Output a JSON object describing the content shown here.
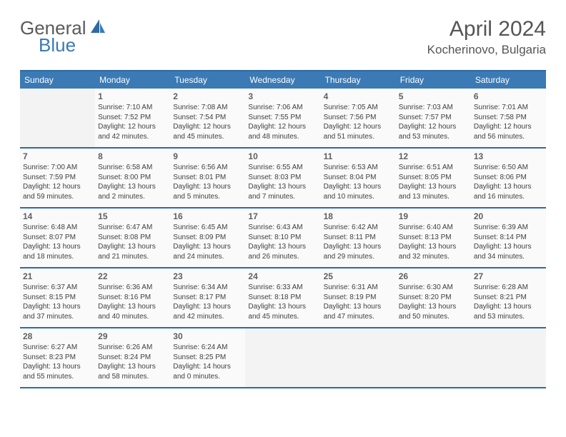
{
  "logo": {
    "text1": "General",
    "text2": "Blue"
  },
  "title": "April 2024",
  "location": "Kocherinovo, Bulgaria",
  "day_names": [
    "Sunday",
    "Monday",
    "Tuesday",
    "Wednesday",
    "Thursday",
    "Friday",
    "Saturday"
  ],
  "colors": {
    "header_bg": "#3b7ab5",
    "border": "#2f6aa3",
    "empty_bg": "#f3f3f3",
    "filled_bg": "#fafafa",
    "text": "#333333",
    "logo_blue": "#3b7ab5",
    "logo_gray": "#5a5a5a"
  },
  "grid": {
    "rows": 5,
    "cols": 7,
    "first_blank_count": 1,
    "last_blank_count": 4
  },
  "days": [
    {
      "n": "1",
      "sunrise": "Sunrise: 7:10 AM",
      "sunset": "Sunset: 7:52 PM",
      "d1": "Daylight: 12 hours",
      "d2": "and 42 minutes."
    },
    {
      "n": "2",
      "sunrise": "Sunrise: 7:08 AM",
      "sunset": "Sunset: 7:54 PM",
      "d1": "Daylight: 12 hours",
      "d2": "and 45 minutes."
    },
    {
      "n": "3",
      "sunrise": "Sunrise: 7:06 AM",
      "sunset": "Sunset: 7:55 PM",
      "d1": "Daylight: 12 hours",
      "d2": "and 48 minutes."
    },
    {
      "n": "4",
      "sunrise": "Sunrise: 7:05 AM",
      "sunset": "Sunset: 7:56 PM",
      "d1": "Daylight: 12 hours",
      "d2": "and 51 minutes."
    },
    {
      "n": "5",
      "sunrise": "Sunrise: 7:03 AM",
      "sunset": "Sunset: 7:57 PM",
      "d1": "Daylight: 12 hours",
      "d2": "and 53 minutes."
    },
    {
      "n": "6",
      "sunrise": "Sunrise: 7:01 AM",
      "sunset": "Sunset: 7:58 PM",
      "d1": "Daylight: 12 hours",
      "d2": "and 56 minutes."
    },
    {
      "n": "7",
      "sunrise": "Sunrise: 7:00 AM",
      "sunset": "Sunset: 7:59 PM",
      "d1": "Daylight: 12 hours",
      "d2": "and 59 minutes."
    },
    {
      "n": "8",
      "sunrise": "Sunrise: 6:58 AM",
      "sunset": "Sunset: 8:00 PM",
      "d1": "Daylight: 13 hours",
      "d2": "and 2 minutes."
    },
    {
      "n": "9",
      "sunrise": "Sunrise: 6:56 AM",
      "sunset": "Sunset: 8:01 PM",
      "d1": "Daylight: 13 hours",
      "d2": "and 5 minutes."
    },
    {
      "n": "10",
      "sunrise": "Sunrise: 6:55 AM",
      "sunset": "Sunset: 8:03 PM",
      "d1": "Daylight: 13 hours",
      "d2": "and 7 minutes."
    },
    {
      "n": "11",
      "sunrise": "Sunrise: 6:53 AM",
      "sunset": "Sunset: 8:04 PM",
      "d1": "Daylight: 13 hours",
      "d2": "and 10 minutes."
    },
    {
      "n": "12",
      "sunrise": "Sunrise: 6:51 AM",
      "sunset": "Sunset: 8:05 PM",
      "d1": "Daylight: 13 hours",
      "d2": "and 13 minutes."
    },
    {
      "n": "13",
      "sunrise": "Sunrise: 6:50 AM",
      "sunset": "Sunset: 8:06 PM",
      "d1": "Daylight: 13 hours",
      "d2": "and 16 minutes."
    },
    {
      "n": "14",
      "sunrise": "Sunrise: 6:48 AM",
      "sunset": "Sunset: 8:07 PM",
      "d1": "Daylight: 13 hours",
      "d2": "and 18 minutes."
    },
    {
      "n": "15",
      "sunrise": "Sunrise: 6:47 AM",
      "sunset": "Sunset: 8:08 PM",
      "d1": "Daylight: 13 hours",
      "d2": "and 21 minutes."
    },
    {
      "n": "16",
      "sunrise": "Sunrise: 6:45 AM",
      "sunset": "Sunset: 8:09 PM",
      "d1": "Daylight: 13 hours",
      "d2": "and 24 minutes."
    },
    {
      "n": "17",
      "sunrise": "Sunrise: 6:43 AM",
      "sunset": "Sunset: 8:10 PM",
      "d1": "Daylight: 13 hours",
      "d2": "and 26 minutes."
    },
    {
      "n": "18",
      "sunrise": "Sunrise: 6:42 AM",
      "sunset": "Sunset: 8:11 PM",
      "d1": "Daylight: 13 hours",
      "d2": "and 29 minutes."
    },
    {
      "n": "19",
      "sunrise": "Sunrise: 6:40 AM",
      "sunset": "Sunset: 8:13 PM",
      "d1": "Daylight: 13 hours",
      "d2": "and 32 minutes."
    },
    {
      "n": "20",
      "sunrise": "Sunrise: 6:39 AM",
      "sunset": "Sunset: 8:14 PM",
      "d1": "Daylight: 13 hours",
      "d2": "and 34 minutes."
    },
    {
      "n": "21",
      "sunrise": "Sunrise: 6:37 AM",
      "sunset": "Sunset: 8:15 PM",
      "d1": "Daylight: 13 hours",
      "d2": "and 37 minutes."
    },
    {
      "n": "22",
      "sunrise": "Sunrise: 6:36 AM",
      "sunset": "Sunset: 8:16 PM",
      "d1": "Daylight: 13 hours",
      "d2": "and 40 minutes."
    },
    {
      "n": "23",
      "sunrise": "Sunrise: 6:34 AM",
      "sunset": "Sunset: 8:17 PM",
      "d1": "Daylight: 13 hours",
      "d2": "and 42 minutes."
    },
    {
      "n": "24",
      "sunrise": "Sunrise: 6:33 AM",
      "sunset": "Sunset: 8:18 PM",
      "d1": "Daylight: 13 hours",
      "d2": "and 45 minutes."
    },
    {
      "n": "25",
      "sunrise": "Sunrise: 6:31 AM",
      "sunset": "Sunset: 8:19 PM",
      "d1": "Daylight: 13 hours",
      "d2": "and 47 minutes."
    },
    {
      "n": "26",
      "sunrise": "Sunrise: 6:30 AM",
      "sunset": "Sunset: 8:20 PM",
      "d1": "Daylight: 13 hours",
      "d2": "and 50 minutes."
    },
    {
      "n": "27",
      "sunrise": "Sunrise: 6:28 AM",
      "sunset": "Sunset: 8:21 PM",
      "d1": "Daylight: 13 hours",
      "d2": "and 53 minutes."
    },
    {
      "n": "28",
      "sunrise": "Sunrise: 6:27 AM",
      "sunset": "Sunset: 8:23 PM",
      "d1": "Daylight: 13 hours",
      "d2": "and 55 minutes."
    },
    {
      "n": "29",
      "sunrise": "Sunrise: 6:26 AM",
      "sunset": "Sunset: 8:24 PM",
      "d1": "Daylight: 13 hours",
      "d2": "and 58 minutes."
    },
    {
      "n": "30",
      "sunrise": "Sunrise: 6:24 AM",
      "sunset": "Sunset: 8:25 PM",
      "d1": "Daylight: 14 hours",
      "d2": "and 0 minutes."
    }
  ]
}
